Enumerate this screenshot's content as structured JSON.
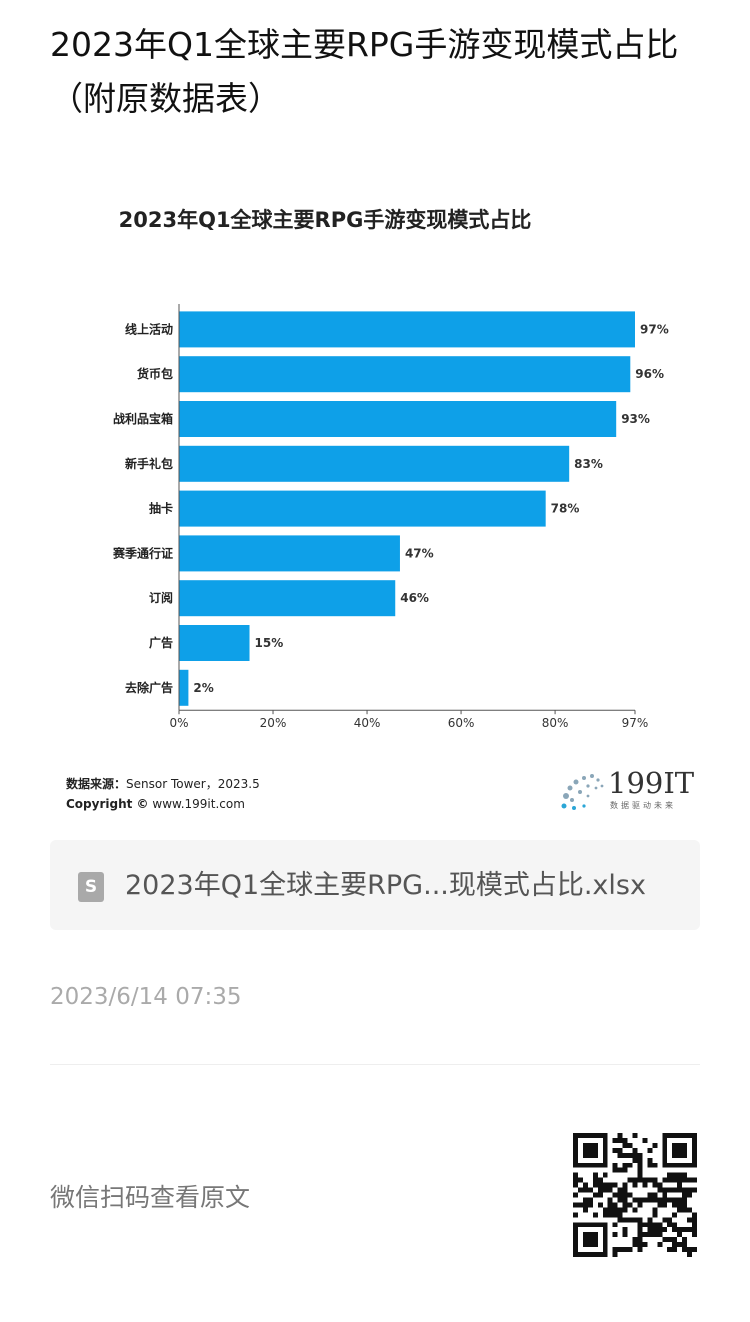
{
  "page": {
    "title": "2023年Q1全球主要RPG手游变现模式占比（附原数据表）"
  },
  "chart_data": {
    "type": "bar",
    "orientation": "horizontal",
    "title": "2023年Q1全球主要RPG手游变现模式占比",
    "categories": [
      "线上活动",
      "货币包",
      "战利品宝箱",
      "新手礼包",
      "抽卡",
      "赛季通行证",
      "订阅",
      "广告",
      "去除广告"
    ],
    "values": [
      97,
      96,
      93,
      83,
      78,
      47,
      46,
      15,
      2
    ],
    "value_labels": [
      "97%",
      "96%",
      "93%",
      "83%",
      "78%",
      "47%",
      "46%",
      "15%",
      "2%"
    ],
    "xticks": [
      "0%",
      "20%",
      "40%",
      "60%",
      "80%",
      "97%"
    ],
    "xlim": [
      0,
      97
    ],
    "bar_color": "#0ea0e8",
    "grid": false
  },
  "source": {
    "label": "数据来源：",
    "text": "Sensor Tower，2023.5",
    "copyright_label": "Copyright ©",
    "copyright_text": "www.199it.com"
  },
  "logo": {
    "text": "199IT",
    "subtitle": "数据驱动未来"
  },
  "attachment": {
    "icon": "spreadsheet-file-icon",
    "name": "2023年Q1全球主要RPG...现模式占比.xlsx"
  },
  "timestamp": "2023/6/14 07:35",
  "qr": {
    "label": "微信扫码查看原文",
    "icon": "qr-code-icon"
  }
}
